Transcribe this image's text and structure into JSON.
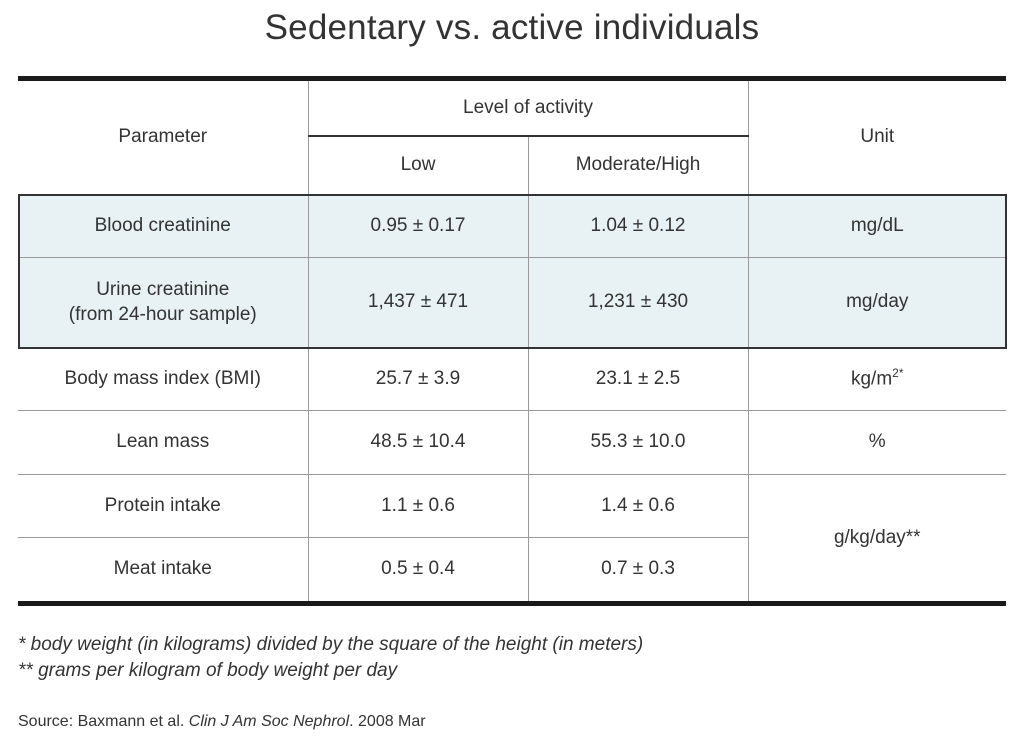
{
  "title": "Sedentary vs. active individuals",
  "table": {
    "header": {
      "parameter": "Parameter",
      "group": "Level of activity",
      "low": "Low",
      "moderate_high": "Moderate/High",
      "unit": "Unit"
    },
    "rows": [
      {
        "parameter": "Blood creatinine",
        "low": "0.95 ± 0.17",
        "high": "1.04 ± 0.12",
        "unit": "mg/dL"
      },
      {
        "parameter_line1": "Urine creatinine",
        "parameter_line2": "(from 24-hour sample)",
        "low": "1,437 ± 471",
        "high": "1,231 ± 430",
        "unit": "mg/day"
      },
      {
        "parameter": "Body mass index (BMI)",
        "low": "25.7 ± 3.9",
        "high": "23.1 ± 2.5",
        "unit_base": "kg/m",
        "unit_sup": "2*"
      },
      {
        "parameter": "Lean mass",
        "low": "48.5 ± 10.4",
        "high": "55.3 ± 10.0",
        "unit": "%"
      },
      {
        "parameter": "Protein intake",
        "low": "1.1 ± 0.6",
        "high": "1.4 ± 0.6",
        "unit": "g/kg/day**"
      },
      {
        "parameter": "Meat intake",
        "low": "0.5 ± 0.4",
        "high": "0.7 ± 0.3"
      }
    ],
    "highlight_color": "#e8f1f4"
  },
  "footnotes": [
    "* body weight (in kilograms) divided by the square of the height (in meters)",
    "** grams per kilogram of body weight per day"
  ],
  "source": {
    "prefix": "Source: Baxmann et al. ",
    "journal": "Clin J Am Soc Nephrol",
    "suffix": ". 2008 Mar"
  }
}
